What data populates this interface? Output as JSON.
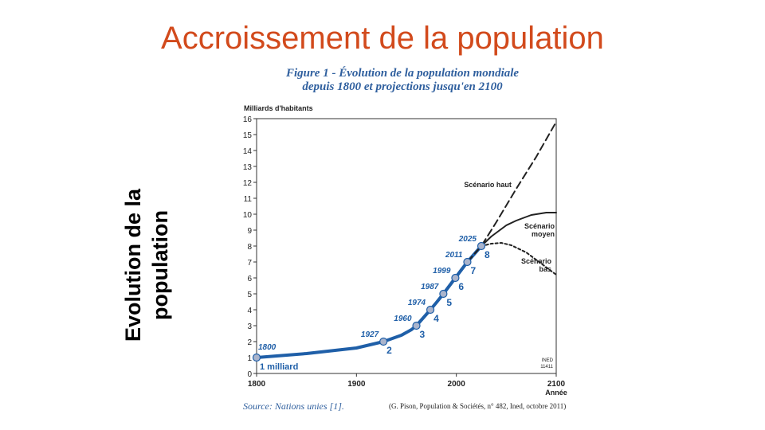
{
  "slide": {
    "title": "Accroissement de la population",
    "side_label_line1": "Evolution de la",
    "side_label_line2": "population"
  },
  "figure": {
    "title_line1": "Figure 1 - Évolution de la population mondiale",
    "title_line2": "depuis 1800 et projections jusqu'en 2100",
    "source": "Source: Nations unies [1].",
    "credit": "(G. Pison, Population & Sociétés, n° 482, Ined, octobre 2011)",
    "ined_mark_1": "INED",
    "ined_mark_2": "11411"
  },
  "chart_data": {
    "type": "line",
    "title": "Figure 1 - Évolution de la population mondiale depuis 1800 et projections jusqu'en 2100",
    "ylabel": "Milliards d'habitants",
    "xlabel": "Année",
    "xlim": [
      1800,
      2100
    ],
    "ylim": [
      0,
      16
    ],
    "x_ticks": [
      1800,
      1900,
      2000,
      2100
    ],
    "y_ticks": [
      0,
      1,
      2,
      3,
      4,
      5,
      6,
      7,
      8,
      9,
      10,
      11,
      12,
      13,
      14,
      15,
      16
    ],
    "colors": {
      "historical": "#1f5fa8",
      "projection": "#222222",
      "marker_fill": "#aab4cc",
      "label": "#1f5fa8"
    },
    "series": [
      {
        "name": "historical",
        "style": "solid",
        "points": [
          [
            1800,
            1.0
          ],
          [
            1850,
            1.25
          ],
          [
            1900,
            1.6
          ],
          [
            1927,
            2.0
          ],
          [
            1945,
            2.4
          ],
          [
            1955,
            2.75
          ],
          [
            1960,
            3.0
          ],
          [
            1967,
            3.5
          ],
          [
            1974,
            4.0
          ],
          [
            1980,
            4.45
          ],
          [
            1987,
            5.0
          ],
          [
            1993,
            5.5
          ],
          [
            1999,
            6.0
          ],
          [
            2005,
            6.5
          ],
          [
            2011,
            7.0
          ],
          [
            2018,
            7.5
          ],
          [
            2025,
            8.0
          ]
        ]
      },
      {
        "name": "Scénario haut",
        "style": "dashed",
        "points": [
          [
            2011,
            7.0
          ],
          [
            2025,
            8.0
          ],
          [
            2040,
            9.5
          ],
          [
            2060,
            11.6
          ],
          [
            2080,
            13.6
          ],
          [
            2100,
            15.8
          ]
        ]
      },
      {
        "name": "Scénario moyen",
        "style": "solid",
        "points": [
          [
            2025,
            8.0
          ],
          [
            2035,
            8.6
          ],
          [
            2050,
            9.3
          ],
          [
            2060,
            9.6
          ],
          [
            2075,
            9.95
          ],
          [
            2090,
            10.1
          ],
          [
            2100,
            10.1
          ]
        ]
      },
      {
        "name": "Scénario bas",
        "style": "dotted",
        "points": [
          [
            2025,
            8.0
          ],
          [
            2035,
            8.15
          ],
          [
            2045,
            8.2
          ],
          [
            2055,
            8.05
          ],
          [
            2070,
            7.6
          ],
          [
            2085,
            6.9
          ],
          [
            2100,
            6.2
          ]
        ]
      }
    ],
    "milestones": [
      {
        "year": 1800,
        "value": 1,
        "year_label": "1800",
        "count_label": "1 milliard"
      },
      {
        "year": 1927,
        "value": 2,
        "year_label": "1927",
        "count_label": "2"
      },
      {
        "year": 1960,
        "value": 3,
        "year_label": "1960",
        "count_label": "3"
      },
      {
        "year": 1974,
        "value": 4,
        "year_label": "1974",
        "count_label": "4"
      },
      {
        "year": 1987,
        "value": 5,
        "year_label": "1987",
        "count_label": "5"
      },
      {
        "year": 1999,
        "value": 6,
        "year_label": "1999",
        "count_label": "6"
      },
      {
        "year": 2011,
        "value": 7,
        "year_label": "2011",
        "count_label": "7"
      },
      {
        "year": 2025,
        "value": 8,
        "year_label": "2025",
        "count_label": "8"
      }
    ],
    "scenario_labels": [
      {
        "series": "Scénario haut",
        "lines": [
          "Scénario haut"
        ]
      },
      {
        "series": "Scénario moyen",
        "lines": [
          "Scénario",
          "moyen"
        ]
      },
      {
        "series": "Scénario bas",
        "lines": [
          "Scénario",
          "bas"
        ]
      }
    ]
  }
}
